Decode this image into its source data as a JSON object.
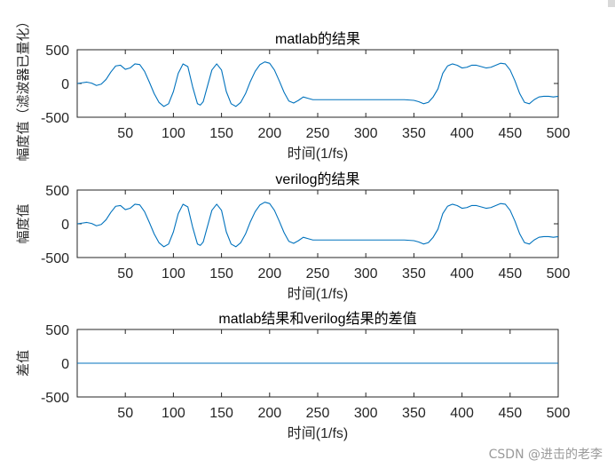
{
  "watermark": "CSDN @进击的老李",
  "chart_data": [
    {
      "type": "line",
      "title": "matlab的结果",
      "xlabel": "时间(1/fs)",
      "ylabel": "幅度值（滤波器已量化）",
      "xlim": [
        0,
        500
      ],
      "ylim": [
        -500,
        500
      ],
      "xticks": [
        50,
        100,
        150,
        200,
        250,
        300,
        350,
        400,
        450,
        500
      ],
      "yticks": [
        500,
        0,
        -500
      ],
      "grid": false,
      "color": "#0072BD",
      "x": [
        0,
        5,
        10,
        15,
        20,
        25,
        30,
        35,
        40,
        45,
        50,
        55,
        60,
        65,
        70,
        75,
        80,
        85,
        90,
        95,
        100,
        105,
        110,
        115,
        120,
        125,
        128,
        131,
        135,
        140,
        145,
        150,
        155,
        160,
        165,
        170,
        175,
        180,
        185,
        190,
        195,
        200,
        205,
        210,
        215,
        220,
        225,
        230,
        235,
        240,
        245,
        250,
        255,
        260,
        265,
        270,
        275,
        280,
        290,
        300,
        310,
        320,
        330,
        340,
        350,
        355,
        360,
        365,
        370,
        375,
        380,
        385,
        390,
        395,
        400,
        405,
        410,
        415,
        420,
        425,
        430,
        435,
        440,
        445,
        450,
        455,
        460,
        465,
        470,
        475,
        480,
        485,
        490,
        495,
        500
      ],
      "y": [
        0,
        10,
        20,
        5,
        -30,
        -10,
        60,
        170,
        260,
        270,
        210,
        230,
        290,
        280,
        180,
        20,
        -150,
        -280,
        -340,
        -300,
        -120,
        150,
        290,
        250,
        -50,
        -300,
        -320,
        -270,
        -60,
        200,
        290,
        200,
        -120,
        -300,
        -340,
        -280,
        -150,
        30,
        180,
        280,
        320,
        300,
        200,
        40,
        -130,
        -260,
        -290,
        -250,
        -200,
        -220,
        -240,
        -240,
        -240,
        -240,
        -240,
        -240,
        -240,
        -240,
        -240,
        -240,
        -240,
        -240,
        -240,
        -240,
        -250,
        -270,
        -300,
        -280,
        -200,
        -80,
        150,
        260,
        290,
        270,
        230,
        240,
        270,
        270,
        250,
        230,
        240,
        270,
        300,
        290,
        200,
        40,
        -150,
        -280,
        -300,
        -240,
        -200,
        -190,
        -190,
        -200,
        -190
      ],
      "x_note": "",
      "ylim_print": [
        -500,
        500
      ]
    },
    {
      "type": "line",
      "title": "verilog的结果",
      "xlabel": "时间(1/fs)",
      "ylabel": "幅度值",
      "xlim": [
        0,
        500
      ],
      "ylim": [
        -500,
        500
      ],
      "xticks": [
        50,
        100,
        150,
        200,
        250,
        300,
        350,
        400,
        450,
        500
      ],
      "yticks": [
        500,
        0,
        -500
      ],
      "grid": false,
      "color": "#0072BD",
      "x": [
        0,
        5,
        10,
        15,
        20,
        25,
        30,
        35,
        40,
        45,
        50,
        55,
        60,
        65,
        70,
        75,
        80,
        85,
        90,
        95,
        100,
        105,
        110,
        115,
        120,
        125,
        128,
        131,
        135,
        140,
        145,
        150,
        155,
        160,
        165,
        170,
        175,
        180,
        185,
        190,
        195,
        200,
        205,
        210,
        215,
        220,
        225,
        230,
        235,
        240,
        245,
        250,
        255,
        260,
        265,
        270,
        275,
        280,
        290,
        300,
        310,
        320,
        330,
        340,
        350,
        355,
        360,
        365,
        370,
        375,
        380,
        385,
        390,
        395,
        400,
        405,
        410,
        415,
        420,
        425,
        430,
        435,
        440,
        445,
        450,
        455,
        460,
        465,
        470,
        475,
        480,
        485,
        490,
        495,
        500
      ],
      "y": [
        0,
        10,
        20,
        5,
        -30,
        -10,
        60,
        170,
        260,
        270,
        210,
        230,
        290,
        280,
        180,
        20,
        -150,
        -280,
        -340,
        -300,
        -120,
        150,
        290,
        250,
        -50,
        -300,
        -320,
        -270,
        -60,
        200,
        290,
        200,
        -120,
        -300,
        -340,
        -280,
        -150,
        30,
        180,
        280,
        320,
        300,
        200,
        40,
        -130,
        -260,
        -290,
        -250,
        -200,
        -220,
        -240,
        -240,
        -240,
        -240,
        -240,
        -240,
        -240,
        -240,
        -240,
        -240,
        -240,
        -240,
        -240,
        -240,
        -250,
        -270,
        -300,
        -280,
        -200,
        -80,
        150,
        260,
        290,
        270,
        230,
        240,
        270,
        270,
        250,
        230,
        240,
        270,
        300,
        290,
        200,
        40,
        -150,
        -280,
        -300,
        -240,
        -200,
        -190,
        -190,
        -200,
        -190
      ]
    },
    {
      "type": "line",
      "title": "matlab结果和verilog结果的差值",
      "xlabel": "时间(1/fs)",
      "ylabel": "差值",
      "xlim": [
        0,
        500
      ],
      "ylim": [
        -500,
        500
      ],
      "xticks": [
        50,
        100,
        150,
        200,
        250,
        300,
        350,
        400,
        450,
        500
      ],
      "yticks": [
        500,
        0,
        -500
      ],
      "grid": false,
      "color": "#0072BD",
      "x": [
        0,
        500
      ],
      "y": [
        0,
        0
      ]
    }
  ]
}
